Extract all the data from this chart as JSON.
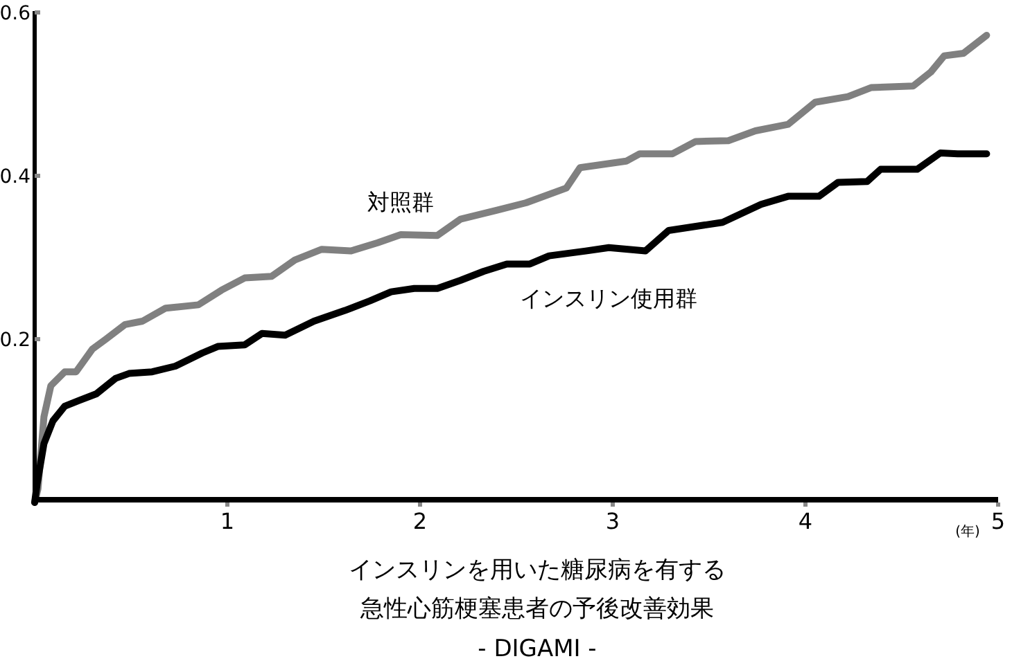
{
  "chart_data": {
    "type": "line",
    "title": "インスリンを用いた糖尿病を有する",
    "subtitle": "急性心筋梗塞患者の予後改善効果",
    "annotations": [
      "- DIGAMI -"
    ],
    "xlabel": "(年)",
    "xlim": [
      0,
      5
    ],
    "ylim": [
      0,
      0.6
    ],
    "xticks": [
      1,
      2,
      3,
      4,
      5
    ],
    "yticks": [
      0.2,
      0.4,
      0.6
    ],
    "grid": false,
    "legend": false,
    "marker": "none",
    "line_style": "solid",
    "series": [
      {
        "name": "対照群",
        "color": "#808080",
        "x": [
          0,
          0.017,
          0.048,
          0.084,
          0.156,
          0.215,
          0.3,
          0.37,
          0.47,
          0.56,
          0.68,
          0.85,
          0.97,
          1.09,
          1.23,
          1.35,
          1.49,
          1.64,
          1.78,
          1.9,
          2.09,
          2.21,
          2.4,
          2.55,
          2.76,
          2.83,
          3.07,
          3.14,
          3.31,
          3.43,
          3.6,
          3.74,
          3.91,
          4.05,
          4.22,
          4.34,
          4.56,
          4.65,
          4.72,
          4.82,
          4.94
        ],
        "values": [
          0,
          0.017,
          0.105,
          0.143,
          0.16,
          0.16,
          0.188,
          0.2,
          0.218,
          0.222,
          0.238,
          0.242,
          0.26,
          0.275,
          0.277,
          0.297,
          0.31,
          0.308,
          0.318,
          0.328,
          0.327,
          0.347,
          0.358,
          0.367,
          0.385,
          0.41,
          0.418,
          0.427,
          0.427,
          0.442,
          0.443,
          0.455,
          0.463,
          0.49,
          0.497,
          0.508,
          0.51,
          0.527,
          0.547,
          0.55,
          0.572
        ]
      },
      {
        "name": "インスリン使用群",
        "color": "#000000",
        "x": [
          0,
          0.012,
          0.048,
          0.095,
          0.156,
          0.23,
          0.32,
          0.42,
          0.49,
          0.61,
          0.73,
          0.87,
          0.95,
          1.09,
          1.18,
          1.3,
          1.45,
          1.61,
          1.74,
          1.85,
          1.97,
          2.09,
          2.21,
          2.33,
          2.45,
          2.57,
          2.67,
          2.86,
          2.98,
          3.17,
          3.29,
          3.57,
          3.77,
          3.91,
          4.07,
          4.17,
          4.32,
          4.39,
          4.58,
          4.7,
          4.79,
          4.94
        ],
        "values": [
          0,
          0.022,
          0.072,
          0.1,
          0.118,
          0.125,
          0.133,
          0.152,
          0.158,
          0.16,
          0.167,
          0.183,
          0.191,
          0.193,
          0.207,
          0.205,
          0.222,
          0.235,
          0.247,
          0.258,
          0.262,
          0.262,
          0.272,
          0.283,
          0.292,
          0.292,
          0.302,
          0.308,
          0.312,
          0.308,
          0.333,
          0.343,
          0.365,
          0.375,
          0.375,
          0.392,
          0.393,
          0.408,
          0.408,
          0.428,
          0.427,
          0.427
        ]
      }
    ]
  }
}
